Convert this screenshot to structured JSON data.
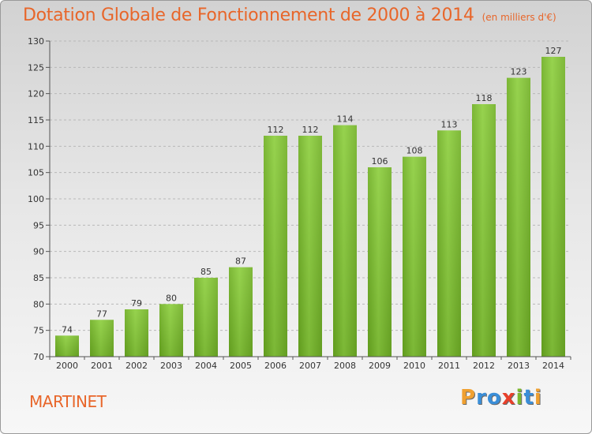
{
  "chart_data": {
    "type": "bar",
    "title": "Dotation Globale de Fonctionnement de 2000 à 2014",
    "subtitle": "(en milliers d'€)",
    "categories": [
      "2000",
      "2001",
      "2002",
      "2003",
      "2004",
      "2005",
      "2006",
      "2007",
      "2008",
      "2009",
      "2010",
      "2011",
      "2012",
      "2013",
      "2014"
    ],
    "values": [
      74,
      77,
      79,
      80,
      85,
      87,
      112,
      112,
      114,
      106,
      108,
      113,
      118,
      123,
      127
    ],
    "ylim": [
      70,
      130
    ],
    "yticks": [
      70,
      75,
      80,
      85,
      90,
      95,
      100,
      105,
      110,
      115,
      120,
      125,
      130
    ],
    "xlabel": "",
    "ylabel": "",
    "bar_color": "#7cb82f",
    "grid": true
  },
  "footer": {
    "commune": "MARTINET",
    "logo_letters": [
      "P",
      "r",
      "o",
      "x",
      "i",
      "t",
      "i"
    ],
    "logo_colors": [
      "#f0a030",
      "#3a8ed8",
      "#3a8ed8",
      "#e8402a",
      "#7cb82f",
      "#3a8ed8",
      "#f0a030"
    ]
  }
}
